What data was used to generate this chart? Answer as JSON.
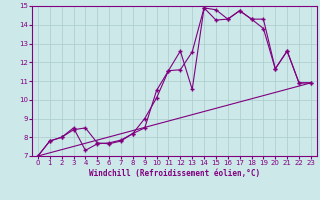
{
  "xlabel": "Windchill (Refroidissement éolien,°C)",
  "bg_color": "#cce8e8",
  "line_color": "#800080",
  "grid_color": "#aacccc",
  "xlim": [
    -0.5,
    23.5
  ],
  "ylim": [
    7,
    15
  ],
  "xticks": [
    0,
    1,
    2,
    3,
    4,
    5,
    6,
    7,
    8,
    9,
    10,
    11,
    12,
    13,
    14,
    15,
    16,
    17,
    18,
    19,
    20,
    21,
    22,
    23
  ],
  "yticks": [
    7,
    8,
    9,
    10,
    11,
    12,
    13,
    14,
    15
  ],
  "line1_x": [
    0,
    1,
    2,
    3,
    4,
    5,
    6,
    7,
    8,
    9,
    10,
    11,
    12,
    13,
    14,
    15,
    16,
    17,
    18,
    19,
    20,
    21,
    22,
    23
  ],
  "line1_y": [
    7.0,
    7.8,
    8.0,
    8.4,
    8.5,
    7.7,
    7.65,
    7.8,
    8.2,
    8.5,
    10.5,
    11.55,
    12.6,
    10.55,
    14.9,
    14.8,
    14.3,
    14.75,
    14.3,
    13.8,
    11.65,
    12.6,
    10.9,
    10.9
  ],
  "line2_x": [
    0,
    1,
    2,
    3,
    4,
    5,
    6,
    7,
    8,
    9,
    10,
    11,
    12,
    13,
    14,
    15,
    16,
    17,
    18,
    19,
    20,
    21,
    22,
    23
  ],
  "line2_y": [
    7.0,
    7.8,
    8.0,
    8.5,
    7.3,
    7.65,
    7.7,
    7.85,
    8.2,
    9.0,
    10.1,
    11.55,
    11.6,
    12.55,
    14.9,
    14.25,
    14.3,
    14.75,
    14.3,
    14.3,
    11.65,
    12.6,
    10.9,
    10.9
  ],
  "line3_x": [
    0,
    23
  ],
  "line3_y": [
    7.0,
    10.9
  ]
}
